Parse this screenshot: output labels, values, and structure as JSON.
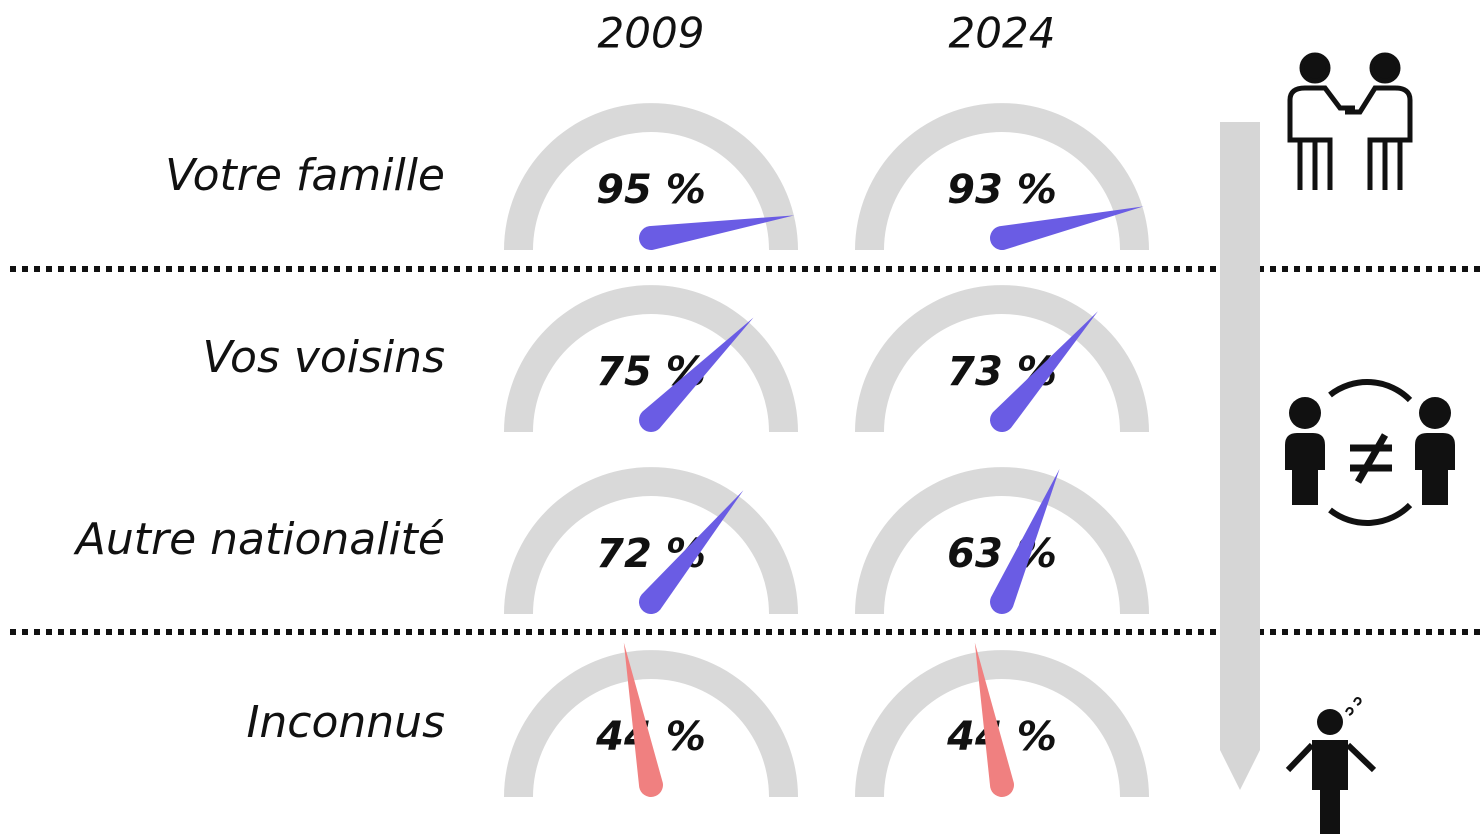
{
  "chart_data": {
    "type": "gauge",
    "categories": [
      "Votre famille",
      "Vos voisins",
      "Autre nationalité",
      "Inconnus"
    ],
    "ylim": [
      0,
      100
    ],
    "series": [
      {
        "name": "2009",
        "values": [
          95,
          75,
          72,
          44
        ],
        "value_labels": [
          "95 %",
          "75 %",
          "72 %",
          "44 %"
        ],
        "colors": [
          "#6a5ce4",
          "#6a5ce4",
          "#6a5ce4",
          "#f08080"
        ]
      },
      {
        "name": "2024",
        "values": [
          93,
          73,
          63,
          44
        ],
        "value_labels": [
          "93 %",
          "73 %",
          "63 %",
          "44 %"
        ],
        "colors": [
          "#6a5ce4",
          "#6a5ce4",
          "#6a5ce4",
          "#f08080"
        ]
      }
    ]
  }
}
